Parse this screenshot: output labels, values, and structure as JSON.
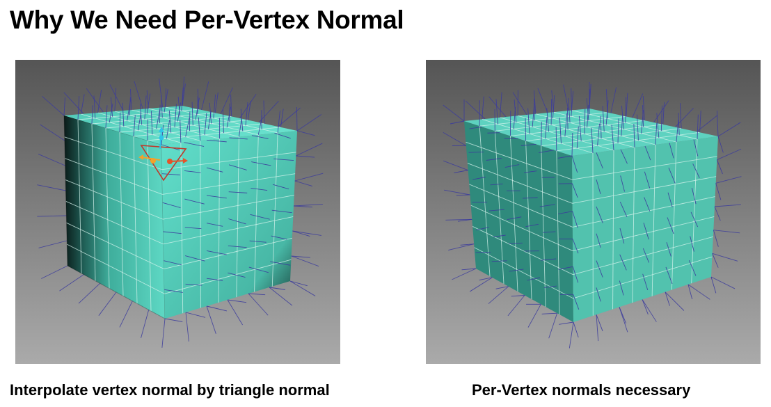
{
  "slide": {
    "title": "Why We Need Per-Vertex Normal"
  },
  "figures": [
    {
      "caption": "Interpolate vertex normal by triangle normal",
      "shading": "smooth",
      "mesh_color": "#5ed8c4",
      "normal_color": "#3c3c9c",
      "gizmo_colors": {
        "up": "#2ec4e8",
        "left": "#f2a22a",
        "right": "#e4542a",
        "triangle": "#c0392b"
      }
    },
    {
      "caption": "Per-Vertex normals necessary",
      "shading": "flat",
      "mesh_color": "#52c2ae",
      "normal_color": "#3c3c9c"
    }
  ],
  "colors": {
    "viewport_top": "#555555",
    "viewport_bottom": "#aaaaaa",
    "grid_line": "#d8f4ee"
  }
}
